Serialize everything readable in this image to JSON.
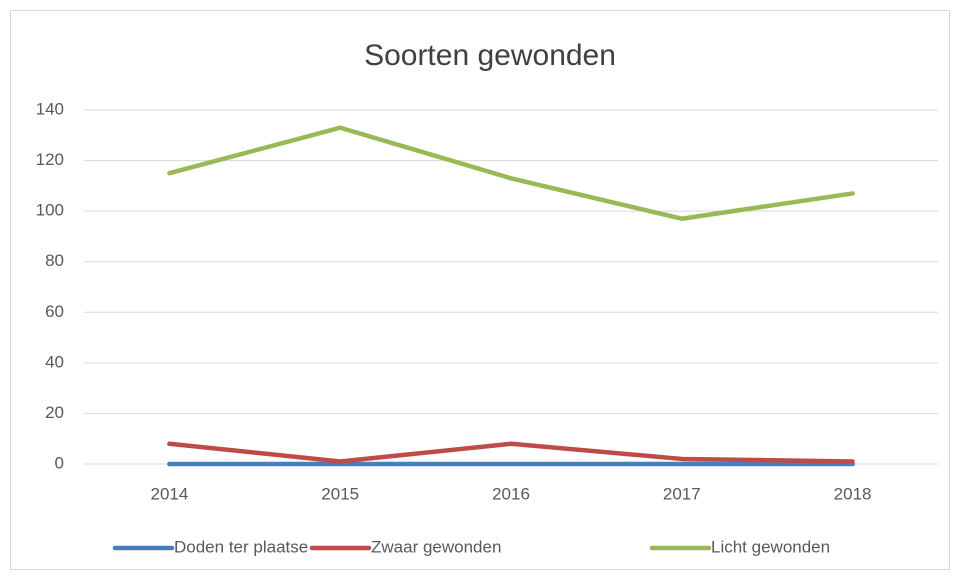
{
  "chart_data": {
    "type": "line",
    "title": "Soorten gewonden",
    "categories": [
      "2014",
      "2015",
      "2016",
      "2017",
      "2018"
    ],
    "series": [
      {
        "name": "Doden ter plaatse",
        "color": "#4a7ebb",
        "values": [
          0,
          0,
          0,
          0,
          0
        ]
      },
      {
        "name": "Zwaar gewonden",
        "color": "#be4b48",
        "values": [
          8,
          1,
          8,
          2,
          1
        ]
      },
      {
        "name": "Licht gewonden",
        "color": "#98b954",
        "values": [
          115,
          133,
          113,
          97,
          107
        ]
      }
    ],
    "ylim": [
      0,
      140
    ],
    "yticks": [
      0,
      20,
      40,
      60,
      80,
      100,
      120,
      140
    ],
    "grid": true,
    "legend": "bottom"
  }
}
